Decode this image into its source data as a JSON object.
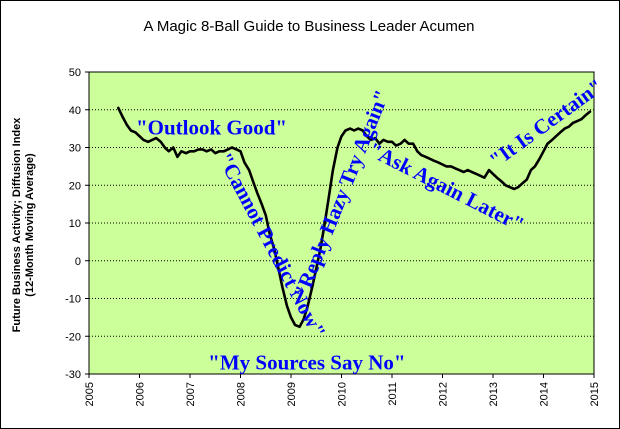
{
  "chart_data": {
    "type": "line",
    "title": "A Magic 8-Ball Guide to Business Leader Acumen",
    "ylabel_line1": "Future Business Activity; Diffusion Index",
    "ylabel_line2": "(12-Month Moving Average)",
    "xlabel": "",
    "xlim": [
      2005,
      2015
    ],
    "ylim": [
      -30,
      50
    ],
    "x_ticks": [
      "2005",
      "2006",
      "2007",
      "2008",
      "2009",
      "2010",
      "2011",
      "2012",
      "2013",
      "2014",
      "2015"
    ],
    "y_ticks": [
      "50",
      "40",
      "30",
      "20",
      "10",
      "0",
      "-10",
      "-20",
      "-30"
    ],
    "grid": true,
    "colors": {
      "plot_bg": "#ccff99",
      "line": "#000000",
      "annotation": "#0000ff",
      "grid": "#000000"
    },
    "series": [
      {
        "x": [
          2005.58,
          2005.67,
          2005.75,
          2005.83,
          2005.92,
          2006.0,
          2006.08,
          2006.17,
          2006.25,
          2006.33,
          2006.42,
          2006.5,
          2006.58,
          2006.67,
          2006.75,
          2006.83,
          2006.92,
          2007.0,
          2007.08,
          2007.17,
          2007.25,
          2007.33,
          2007.42,
          2007.5,
          2007.58,
          2007.67,
          2007.75,
          2007.83,
          2007.92,
          2008.0,
          2008.08,
          2008.17,
          2008.25,
          2008.33,
          2008.42,
          2008.5,
          2008.58,
          2008.67,
          2008.75,
          2008.83,
          2008.92,
          2009.0,
          2009.08,
          2009.17,
          2009.25,
          2009.33,
          2009.42,
          2009.5,
          2009.58,
          2009.67,
          2009.75,
          2009.83,
          2009.92,
          2010.0,
          2010.08,
          2010.17,
          2010.25,
          2010.33,
          2010.42,
          2010.5,
          2010.58,
          2010.67,
          2010.75,
          2010.83,
          2010.92,
          2011.0,
          2011.08,
          2011.17,
          2011.25,
          2011.33,
          2011.42,
          2011.5,
          2011.58,
          2011.67,
          2011.75,
          2011.83,
          2011.92,
          2012.0,
          2012.08,
          2012.17,
          2012.25,
          2012.33,
          2012.42,
          2012.5,
          2012.58,
          2012.67,
          2012.75,
          2012.83,
          2012.92,
          2013.0,
          2013.08,
          2013.17,
          2013.25,
          2013.33,
          2013.42,
          2013.5,
          2013.58,
          2013.67,
          2013.75,
          2013.83,
          2013.92,
          2014.0,
          2014.08,
          2014.17,
          2014.25,
          2014.33,
          2014.42,
          2014.5,
          2014.58,
          2014.67,
          2014.75,
          2014.83,
          2014.92
        ],
        "values": [
          40.5,
          38,
          36,
          34.5,
          34,
          33,
          32,
          31.5,
          32,
          32.5,
          31.5,
          30,
          29,
          30,
          27.5,
          29,
          28.5,
          29,
          29,
          29.5,
          29.5,
          29,
          29.5,
          28.5,
          29,
          29,
          29.5,
          30,
          29.5,
          29,
          26,
          24,
          21,
          18,
          15,
          12,
          7,
          3,
          -2,
          -7,
          -12,
          -15,
          -17,
          -17.5,
          -15.5,
          -12,
          -7,
          -2,
          3,
          10,
          17,
          24,
          30,
          33,
          34.5,
          35,
          34.5,
          35,
          34.5,
          33,
          32,
          32.5,
          31,
          32,
          31.5,
          31.5,
          30.5,
          31,
          32,
          31,
          31,
          29,
          28,
          27.5,
          27,
          26.5,
          26,
          25.5,
          25,
          25,
          24.5,
          24,
          23.5,
          24,
          23.5,
          23,
          22.5,
          22,
          24,
          23,
          22,
          21,
          20,
          19.5,
          19,
          19.5,
          20.5,
          21.5,
          24,
          25,
          27,
          29,
          31,
          32,
          33,
          34,
          35,
          35.5,
          36.5,
          37,
          37.5,
          38.5,
          39.5
        ]
      }
    ],
    "annotations": [
      {
        "text": "\"Outlook Good\"",
        "x": 2005.93,
        "y": 33.5,
        "rotate": 0
      },
      {
        "text": "\"Cannot Predict Now\"",
        "x": 2007.54,
        "y": 27.3,
        "rotate": 62
      },
      {
        "text": "\"Reply Hazy Try Again\"",
        "x": 2009.3,
        "y": -10.4,
        "rotate": -68
      },
      {
        "text": "\"My Sources Say No\"",
        "x": 2007.36,
        "y": -28.8,
        "rotate": 0
      },
      {
        "text": "\"Ask Again Later\"",
        "x": 2010.5,
        "y": 28.2,
        "rotate": 27
      },
      {
        "text": "\"It Is Certain\"",
        "x": 2013.06,
        "y": 24.5,
        "rotate": -36
      }
    ]
  }
}
